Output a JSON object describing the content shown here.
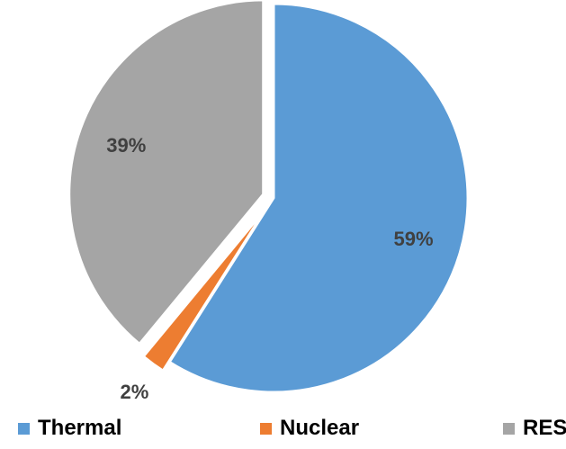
{
  "chart_data": {
    "type": "pie",
    "title": "",
    "slices": [
      {
        "label": "Thermal",
        "value": 59,
        "display": "59%",
        "color": "#5B9BD5",
        "exploded": false
      },
      {
        "label": "Nuclear",
        "value": 2,
        "display": "2%",
        "color": "#ED7D31",
        "exploded": true
      },
      {
        "label": "RES",
        "value": 39,
        "display": "39%",
        "color": "#A5A5A5",
        "exploded": true
      }
    ],
    "legend_position": "bottom",
    "data_labels": true
  },
  "legend": {
    "items": [
      {
        "label": "Thermal",
        "color": "#5B9BD5"
      },
      {
        "label": "Nuclear",
        "color": "#ED7D31"
      },
      {
        "label": "RES",
        "color": "#A5A5A5"
      }
    ]
  }
}
